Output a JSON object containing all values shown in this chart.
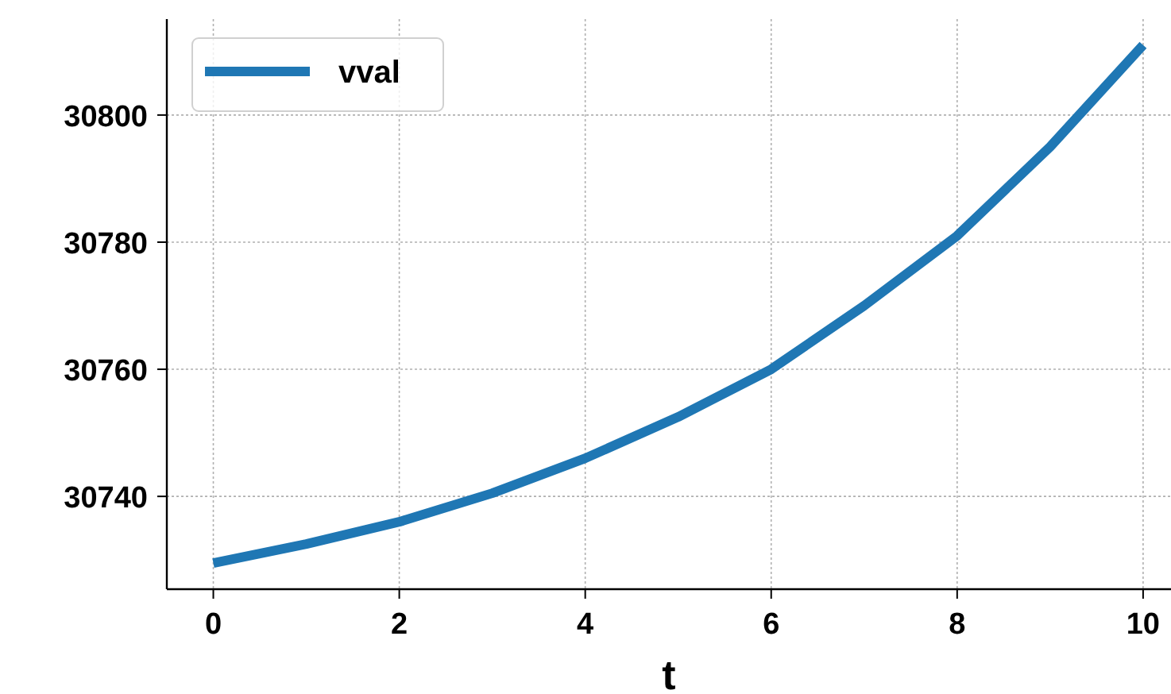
{
  "chart_data": {
    "type": "line",
    "xlabel": "t",
    "series": [
      {
        "name": "vval",
        "color": "#1f77b4",
        "x": [
          0,
          1,
          2,
          3,
          4,
          5,
          6,
          7,
          8,
          9,
          10
        ],
        "values": [
          30729.5,
          30732.5,
          30736,
          30740.5,
          30746,
          30752.5,
          30760,
          30770,
          30781,
          30795,
          30811
        ]
      }
    ],
    "xlim": [
      -0.5,
      10.3
    ],
    "ylim": [
      30725.4,
      30815.1
    ],
    "xticks": [
      0,
      2,
      4,
      6,
      8,
      10
    ],
    "yticks": [
      30740,
      30760,
      30780,
      30800
    ],
    "grid": true,
    "legend": "top left",
    "marker": "none",
    "line_style": "solid"
  }
}
